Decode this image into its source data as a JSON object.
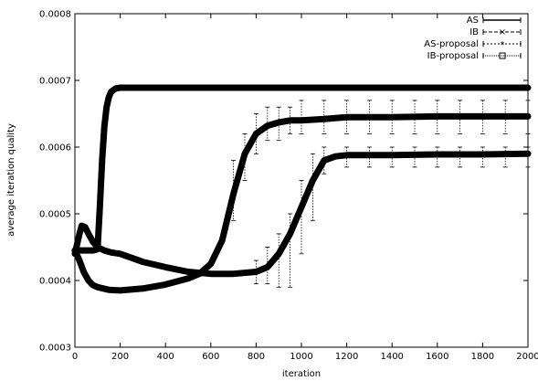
{
  "chart_data": {
    "type": "line",
    "title": "",
    "xlabel": "iteration",
    "ylabel": "average iteration quality",
    "xlim": [
      0,
      2000
    ],
    "ylim": [
      0.0003,
      0.0008
    ],
    "x_ticks": [
      "0",
      "200",
      "400",
      "600",
      "800",
      "1000",
      "1200",
      "1400",
      "1600",
      "1800",
      "2000"
    ],
    "y_ticks": [
      "0.0003",
      "0.0004",
      "0.0005",
      "0.0006",
      "0.0007",
      "0.0008"
    ],
    "grid": false,
    "legend_position": "top-right",
    "series": [
      {
        "name": "AS",
        "color": "#000000",
        "points": [
          [
            0,
            0.000445
          ],
          [
            40,
            0.000445
          ],
          [
            80,
            0.000445
          ],
          [
            100,
            0.000447
          ],
          [
            110,
            0.00051
          ],
          [
            120,
            0.00058
          ],
          [
            130,
            0.00063
          ],
          [
            140,
            0.00066
          ],
          [
            150,
            0.000675
          ],
          [
            160,
            0.000683
          ],
          [
            180,
            0.000688
          ],
          [
            200,
            0.000689
          ],
          [
            400,
            0.000689
          ],
          [
            600,
            0.000689
          ],
          [
            800,
            0.000689
          ],
          [
            1000,
            0.000689
          ],
          [
            1200,
            0.000689
          ],
          [
            1400,
            0.000689
          ],
          [
            1600,
            0.000689
          ],
          [
            1800,
            0.000689
          ],
          [
            2000,
            0.000689
          ]
        ],
        "error_bars": []
      },
      {
        "name": "IB",
        "color": "#000000",
        "points": [
          [
            0,
            0.000445
          ],
          [
            20,
            0.00043
          ],
          [
            40,
            0.000412
          ],
          [
            60,
            0.0004
          ],
          [
            80,
            0.000393
          ],
          [
            100,
            0.00039
          ],
          [
            150,
            0.000386
          ],
          [
            200,
            0.000385
          ],
          [
            300,
            0.000388
          ],
          [
            400,
            0.000394
          ],
          [
            500,
            0.000403
          ],
          [
            550,
            0.00041
          ],
          [
            600,
            0.000425
          ],
          [
            650,
            0.00046
          ],
          [
            700,
            0.00053
          ],
          [
            750,
            0.00059
          ],
          [
            800,
            0.00062
          ],
          [
            850,
            0.000632
          ],
          [
            900,
            0.000637
          ],
          [
            950,
            0.00064
          ],
          [
            1000,
            0.00064
          ],
          [
            1100,
            0.000642
          ],
          [
            1200,
            0.000645
          ],
          [
            1400,
            0.000645
          ],
          [
            1600,
            0.000646
          ],
          [
            1800,
            0.000646
          ],
          [
            2000,
            0.000646
          ]
        ],
        "error_bars": [
          [
            700,
            0.00058,
            0.00049
          ],
          [
            750,
            0.00062,
            0.00055
          ],
          [
            800,
            0.00065,
            0.00059
          ],
          [
            850,
            0.00066,
            0.00061
          ],
          [
            900,
            0.00066,
            0.00061
          ],
          [
            950,
            0.00066,
            0.00062
          ],
          [
            1000,
            0.00067,
            0.00062
          ],
          [
            1100,
            0.00067,
            0.00062
          ],
          [
            1200,
            0.00067,
            0.00062
          ],
          [
            1300,
            0.00067,
            0.00062
          ],
          [
            1400,
            0.00067,
            0.00062
          ],
          [
            1500,
            0.00067,
            0.00062
          ],
          [
            1600,
            0.00067,
            0.00062
          ],
          [
            1700,
            0.00067,
            0.00062
          ],
          [
            1800,
            0.00067,
            0.00062
          ],
          [
            1900,
            0.00067,
            0.00062
          ],
          [
            2000,
            0.00067,
            0.00062
          ]
        ]
      },
      {
        "name": "AS-proposal",
        "color": "#000000",
        "points": [
          [
            0,
            0.00044
          ],
          [
            20,
            0.00047
          ],
          [
            30,
            0.000482
          ],
          [
            45,
            0.00048
          ],
          [
            60,
            0.00047
          ],
          [
            80,
            0.000458
          ],
          [
            100,
            0.00045
          ],
          [
            130,
            0.000445
          ],
          [
            160,
            0.000442
          ],
          [
            200,
            0.00044
          ],
          [
            300,
            0.000428
          ],
          [
            400,
            0.00042
          ],
          [
            500,
            0.000413
          ],
          [
            600,
            0.00041
          ],
          [
            700,
            0.00041
          ],
          [
            800,
            0.000413
          ],
          [
            850,
            0.00042
          ],
          [
            900,
            0.00044
          ],
          [
            950,
            0.00047
          ],
          [
            1000,
            0.00051
          ],
          [
            1050,
            0.00055
          ],
          [
            1100,
            0.00058
          ],
          [
            1150,
            0.000586
          ],
          [
            1200,
            0.000588
          ],
          [
            1400,
            0.000588
          ],
          [
            1600,
            0.000589
          ],
          [
            1800,
            0.000589
          ],
          [
            2000,
            0.00059
          ]
        ],
        "error_bars": [
          [
            800,
            0.00043,
            0.000395
          ],
          [
            850,
            0.00045,
            0.000395
          ],
          [
            900,
            0.00047,
            0.00039
          ],
          [
            950,
            0.0005,
            0.00039
          ],
          [
            1000,
            0.00055,
            0.00044
          ],
          [
            1050,
            0.00059,
            0.00049
          ],
          [
            1100,
            0.0006,
            0.00056
          ],
          [
            1200,
            0.0006,
            0.00057
          ],
          [
            1300,
            0.0006,
            0.00057
          ],
          [
            1400,
            0.0006,
            0.00057
          ],
          [
            1500,
            0.0006,
            0.00057
          ],
          [
            1600,
            0.0006,
            0.00057
          ],
          [
            1700,
            0.0006,
            0.00057
          ],
          [
            1800,
            0.0006,
            0.00057
          ],
          [
            1900,
            0.0006,
            0.00057
          ],
          [
            2000,
            0.0006,
            0.00057
          ]
        ]
      },
      {
        "name": "IB-proposal",
        "color": "#000000",
        "points": [],
        "error_bars": []
      }
    ]
  }
}
